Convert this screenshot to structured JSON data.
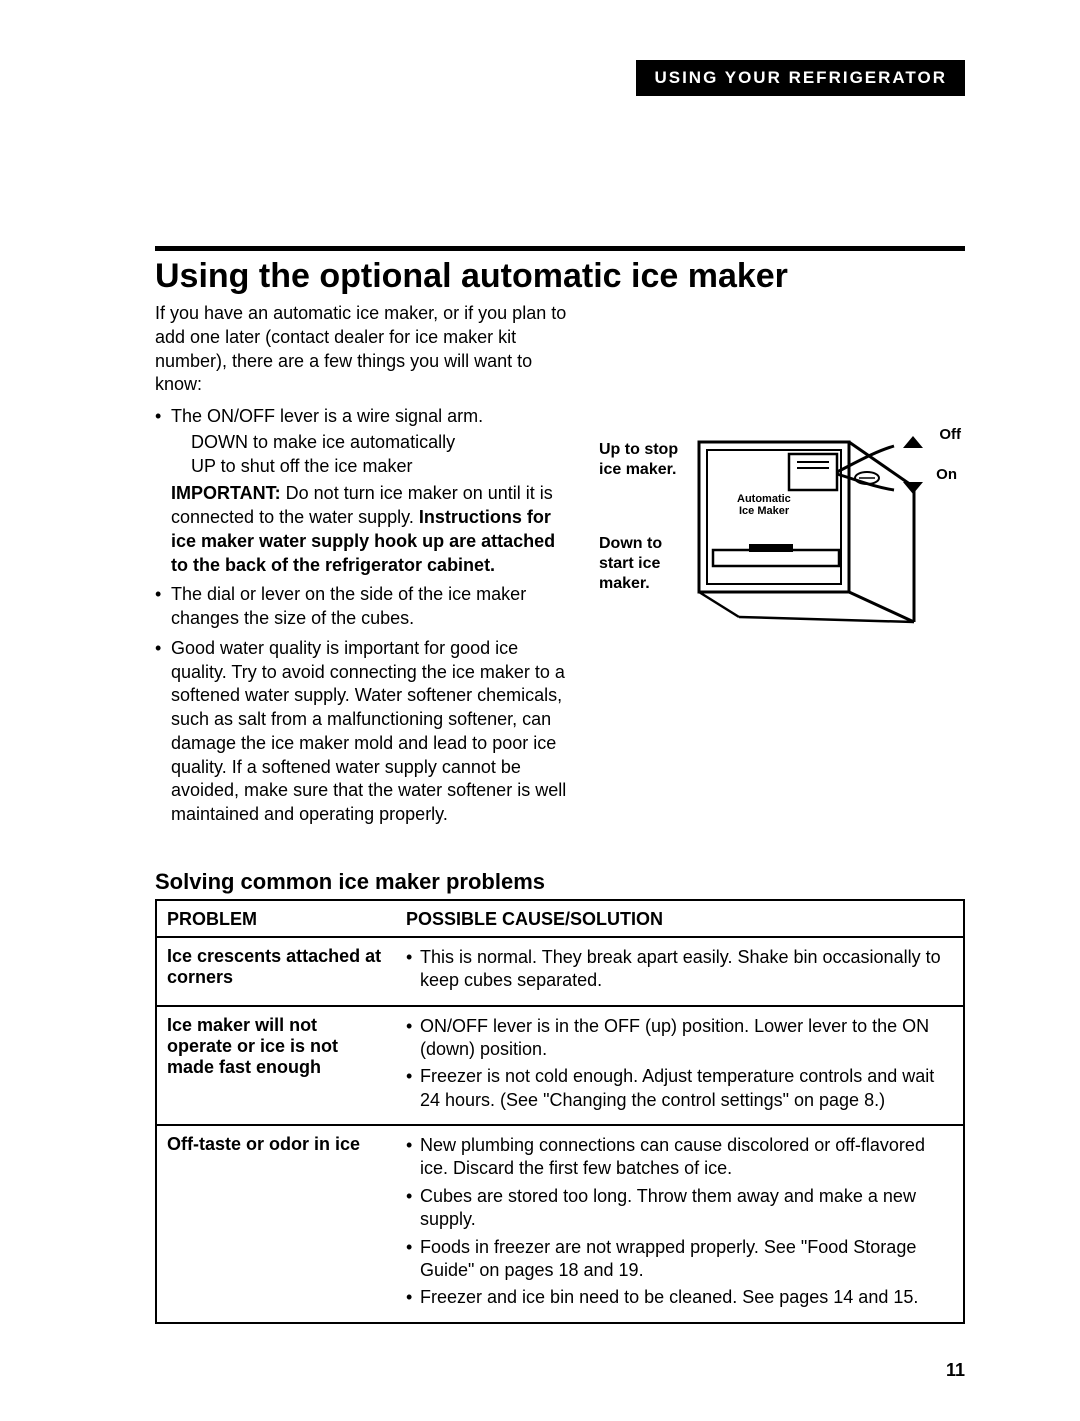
{
  "header_band": "USING YOUR REFRIGERATOR",
  "title": "Using the optional automatic ice maker",
  "intro": "If you have an automatic ice maker, or if you plan to add one later (contact dealer for ice maker kit number), there are a few things you will want to know:",
  "bullets": [
    {
      "text": "The ON/OFF lever is a wire signal arm.",
      "sublines": [
        "DOWN to make ice automatically",
        "UP to shut off the ice maker"
      ],
      "note_lead": "IMPORTANT:",
      "note_rest": " Do not turn ice maker on until it is connected to the water supply. ",
      "note_bold": "Instructions for ice maker water supply hook up are attached to the back of the refrigerator cabinet."
    },
    {
      "text": "The dial or lever on the side of the ice maker changes the size of the cubes."
    },
    {
      "text": "Good water quality is important for good ice quality. Try to avoid connecting the ice maker to a softened water supply. Water softener chemicals, such as salt from a malfunctioning softener, can damage the ice maker mold and lead to poor ice quality. If a softened water supply cannot be avoided, make sure that the water softener is well maintained and operating properly."
    }
  ],
  "diagram": {
    "label_up": "Up to stop ice maker.",
    "label_down": "Down to start ice maker.",
    "off": "Off",
    "on": "On",
    "inside": "Automatic\nIce Maker"
  },
  "subheading": "Solving common ice maker problems",
  "table": {
    "col1": "PROBLEM",
    "col2": "POSSIBLE CAUSE/SOLUTION",
    "rows": [
      {
        "problem": "Ice crescents attached at corners",
        "solutions": [
          "This is normal. They break apart easily. Shake bin occasionally to keep cubes separated."
        ]
      },
      {
        "problem": "Ice maker will not operate or ice is not made fast enough",
        "solutions": [
          "ON/OFF lever is in the OFF (up) position. Lower lever to the ON (down) position.",
          "Freezer is not cold enough. Adjust temperature controls and wait 24 hours. (See \"Changing the control settings\" on page 8.)"
        ]
      },
      {
        "problem": "Off-taste or odor in ice",
        "solutions": [
          "New plumbing connections can cause discolored or off-flavored ice. Discard the first few batches of ice.",
          "Cubes are stored too long. Throw them away and make a new supply.",
          "Foods in freezer are not wrapped properly. See \"Food Storage Guide\" on pages 18 and 19.",
          "Freezer and ice bin need to be cleaned. See pages 14 and 15."
        ]
      }
    ]
  },
  "page_number": "11"
}
